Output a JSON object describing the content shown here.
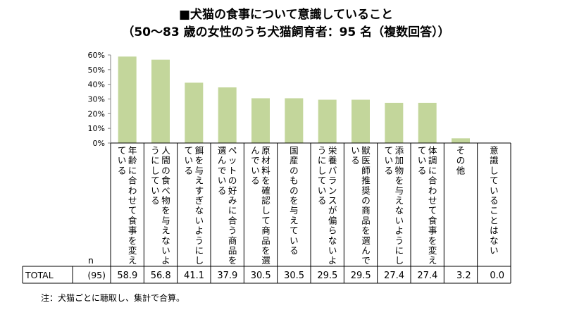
{
  "title_line1": "■犬猫の食事について意識していること",
  "title_line2": "（50～83 歳の女性のうち犬猫飼育者：95 名（複数回答））",
  "note": "注：犬猫ごとに聴取し、集計で合算。",
  "colors": {
    "bar": "#c3d69b",
    "axis": "#808080",
    "grid": "#000000"
  },
  "chart_data": {
    "type": "bar",
    "title": "■犬猫の食事について意識していること",
    "ylabel": "",
    "ylim": [
      0,
      60
    ],
    "yticks": [
      "0%",
      "10%",
      "20%",
      "30%",
      "40%",
      "50%",
      "60%"
    ],
    "n_label": "n",
    "row_label": "TOTAL",
    "n_value": "(95)",
    "categories": [
      "年齢に合わせて食事を変えている",
      "人間の食べ物を与えないようにしている",
      "餌を与えすぎないようにしている",
      "ペットの好みに合う商品を選んでいる",
      "原材料を確認して商品を選んでいる",
      "国産のものを与えている",
      "栄養バランスが偏らないようにしている",
      "獣医師推奨の商品を選んでいる",
      "添加物を与えないようにしている",
      "体調に合わせて食事を変えている",
      "その他",
      "意識していることはない"
    ],
    "values": [
      58.9,
      56.8,
      41.1,
      37.9,
      30.5,
      30.5,
      29.5,
      29.5,
      27.4,
      27.4,
      3.2,
      0.0
    ],
    "value_labels": [
      "58.9",
      "56.8",
      "41.1",
      "37.9",
      "30.5",
      "30.5",
      "29.5",
      "29.5",
      "27.4",
      "27.4",
      "3.2",
      "0.0"
    ]
  }
}
